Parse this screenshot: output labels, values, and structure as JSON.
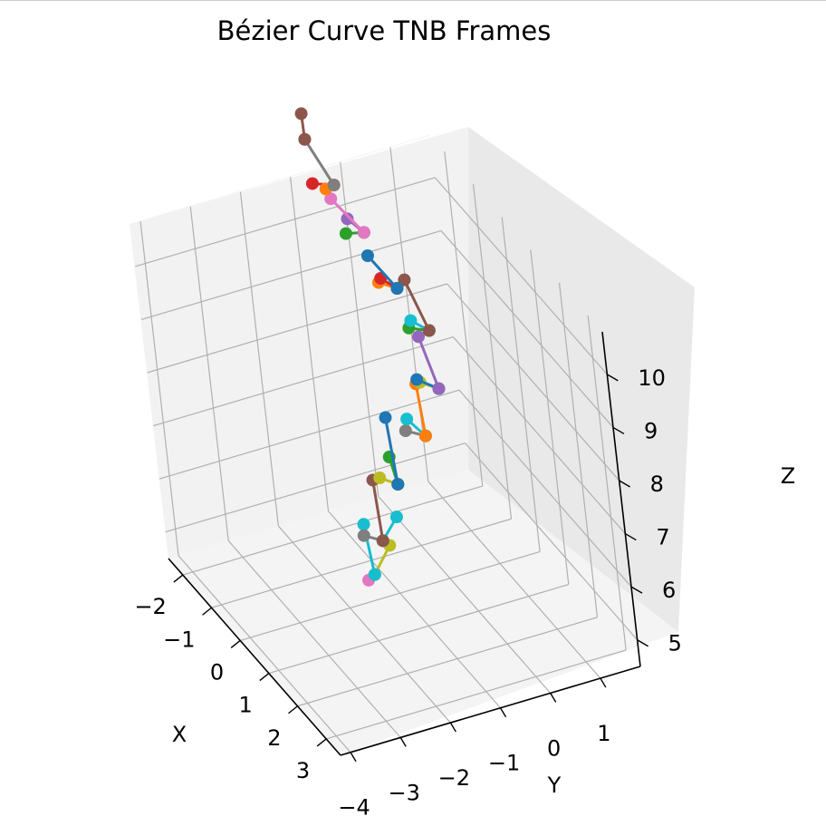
{
  "chart_data": {
    "type": "line3d",
    "title": "Bézier Curve TNB Frames",
    "xlabel": "X",
    "ylabel": "Y",
    "zlabel": "Z",
    "xlim": [
      -2.5,
      3.5
    ],
    "ylim": [
      -4.2,
      1.8
    ],
    "zlim": [
      4.5,
      10.8
    ],
    "x_ticks": [
      "−2",
      "−1",
      "0",
      "1",
      "2",
      "3"
    ],
    "y_ticks": [
      "−4",
      "−3",
      "−2",
      "−1",
      "0",
      "1"
    ],
    "z_ticks": [
      "5",
      "6",
      "7",
      "8",
      "9",
      "10"
    ],
    "grid": true,
    "palette": [
      "#1f77b4",
      "#ff7f0e",
      "#2ca02c",
      "#d62728",
      "#9467bd",
      "#8c564b",
      "#e377c2",
      "#7f7f7f",
      "#bcbd22",
      "#17becf"
    ],
    "segments": [
      {
        "color": "#e377c2",
        "points": [
          [
            -0.1,
            -1.4,
            4.9
          ],
          [
            -0.06,
            -1.55,
            4.86
          ]
        ]
      },
      {
        "color": "#bcbd22",
        "points": [
          [
            -0.1,
            -1.4,
            4.9
          ],
          [
            -0.3,
            -0.95,
            5.2
          ]
        ]
      },
      {
        "color": "#17becf",
        "points": [
          [
            -0.1,
            -1.4,
            4.9
          ],
          [
            -0.73,
            -1.2,
            5.4
          ]
        ]
      },
      {
        "color": "#7f7f7f",
        "points": [
          [
            0.07,
            -1.25,
            5.6
          ],
          [
            -0.11,
            -1.52,
            5.66
          ]
        ]
      },
      {
        "color": "#17becf",
        "points": [
          [
            0.07,
            -1.25,
            5.6
          ],
          [
            -0.1,
            -0.85,
            5.83
          ]
        ]
      },
      {
        "color": "#8c564b",
        "points": [
          [
            0.07,
            -1.25,
            5.6
          ],
          [
            -0.62,
            -0.98,
            6.24
          ]
        ]
      },
      {
        "color": "#bcbd22",
        "points": [
          [
            0.14,
            -0.87,
            6.6
          ],
          [
            0.0,
            -1.14,
            6.71
          ]
        ]
      },
      {
        "color": "#2ca02c",
        "points": [
          [
            0.14,
            -0.87,
            6.6
          ],
          [
            -0.29,
            -0.77,
            6.82
          ]
        ]
      },
      {
        "color": "#1f77b4",
        "points": [
          [
            0.14,
            -0.87,
            6.6
          ],
          [
            -0.74,
            -0.54,
            7.22
          ]
        ]
      },
      {
        "color": "#7f7f7f",
        "points": [
          [
            0.23,
            -0.27,
            7.4
          ],
          [
            0.03,
            -0.55,
            7.45
          ]
        ]
      },
      {
        "color": "#17becf",
        "points": [
          [
            0.23,
            -0.27,
            7.4
          ],
          [
            -0.18,
            -0.4,
            7.5
          ]
        ]
      },
      {
        "color": "#ff7f0e",
        "points": [
          [
            0.23,
            -0.27,
            7.4
          ],
          [
            -0.38,
            -0.05,
            7.94
          ]
        ]
      },
      {
        "color": "#bcbd22",
        "points": [
          [
            -0.02,
            0.21,
            8.0
          ],
          [
            -0.35,
            0.02,
            7.97
          ]
        ]
      },
      {
        "color": "#1f77b4",
        "points": [
          [
            -0.02,
            0.21,
            8.0
          ],
          [
            -0.2,
            -0.11,
            8.15
          ]
        ]
      },
      {
        "color": "#9467bd",
        "points": [
          [
            -0.02,
            0.21,
            8.0
          ],
          [
            -0.64,
            0.23,
            8.59
          ]
        ]
      },
      {
        "color": "#2ca02c",
        "points": [
          [
            -0.7,
            0.48,
            8.6
          ],
          [
            -0.84,
            0.16,
            8.65
          ]
        ]
      },
      {
        "color": "#17becf",
        "points": [
          [
            -0.7,
            0.48,
            8.6
          ],
          [
            -0.9,
            0.24,
            8.73
          ]
        ]
      },
      {
        "color": "#8c564b",
        "points": [
          [
            -0.7,
            0.48,
            8.6
          ],
          [
            -1.32,
            0.41,
            9.19
          ]
        ]
      },
      {
        "color": "#ff7f0e",
        "points": [
          [
            -1.42,
            0.3,
            9.0
          ],
          [
            -1.64,
            0.06,
            9.04
          ]
        ]
      },
      {
        "color": "#d62728",
        "points": [
          [
            -1.42,
            0.3,
            9.0
          ],
          [
            -1.58,
            0.08,
            9.15
          ]
        ]
      },
      {
        "color": "#1f77b4",
        "points": [
          [
            -1.42,
            0.3,
            9.0
          ],
          [
            -1.81,
            -0.01,
            9.46
          ]
        ]
      },
      {
        "color": "#2ca02c",
        "points": [
          [
            -2.08,
            0.1,
            9.7
          ],
          [
            -2.25,
            -0.17,
            9.65
          ]
        ]
      },
      {
        "color": "#9467bd",
        "points": [
          [
            -2.08,
            0.1,
            9.7
          ],
          [
            -2.29,
            -0.09,
            9.88
          ]
        ]
      },
      {
        "color": "#e377c2",
        "points": [
          [
            -2.08,
            0.1,
            9.7
          ],
          [
            -2.47,
            -0.28,
            10.2
          ]
        ]
      },
      {
        "color": "#d62728",
        "points": [
          [
            -2.78,
            -0.04,
            10.2
          ],
          [
            -2.93,
            -0.38,
            10.23
          ]
        ]
      },
      {
        "color": "#ff7f0e",
        "points": [
          [
            -2.78,
            -0.04,
            10.2
          ],
          [
            -2.81,
            -0.19,
            10.15
          ]
        ]
      },
      {
        "color": "#7f7f7f",
        "points": [
          [
            -2.78,
            -0.04,
            10.2
          ],
          [
            -3.43,
            -0.19,
            10.7
          ]
        ]
      },
      {
        "color": "#8c564b",
        "points": [
          [
            -3.43,
            -0.19,
            10.7
          ],
          [
            -3.68,
            -0.08,
            11.0
          ]
        ]
      }
    ]
  }
}
